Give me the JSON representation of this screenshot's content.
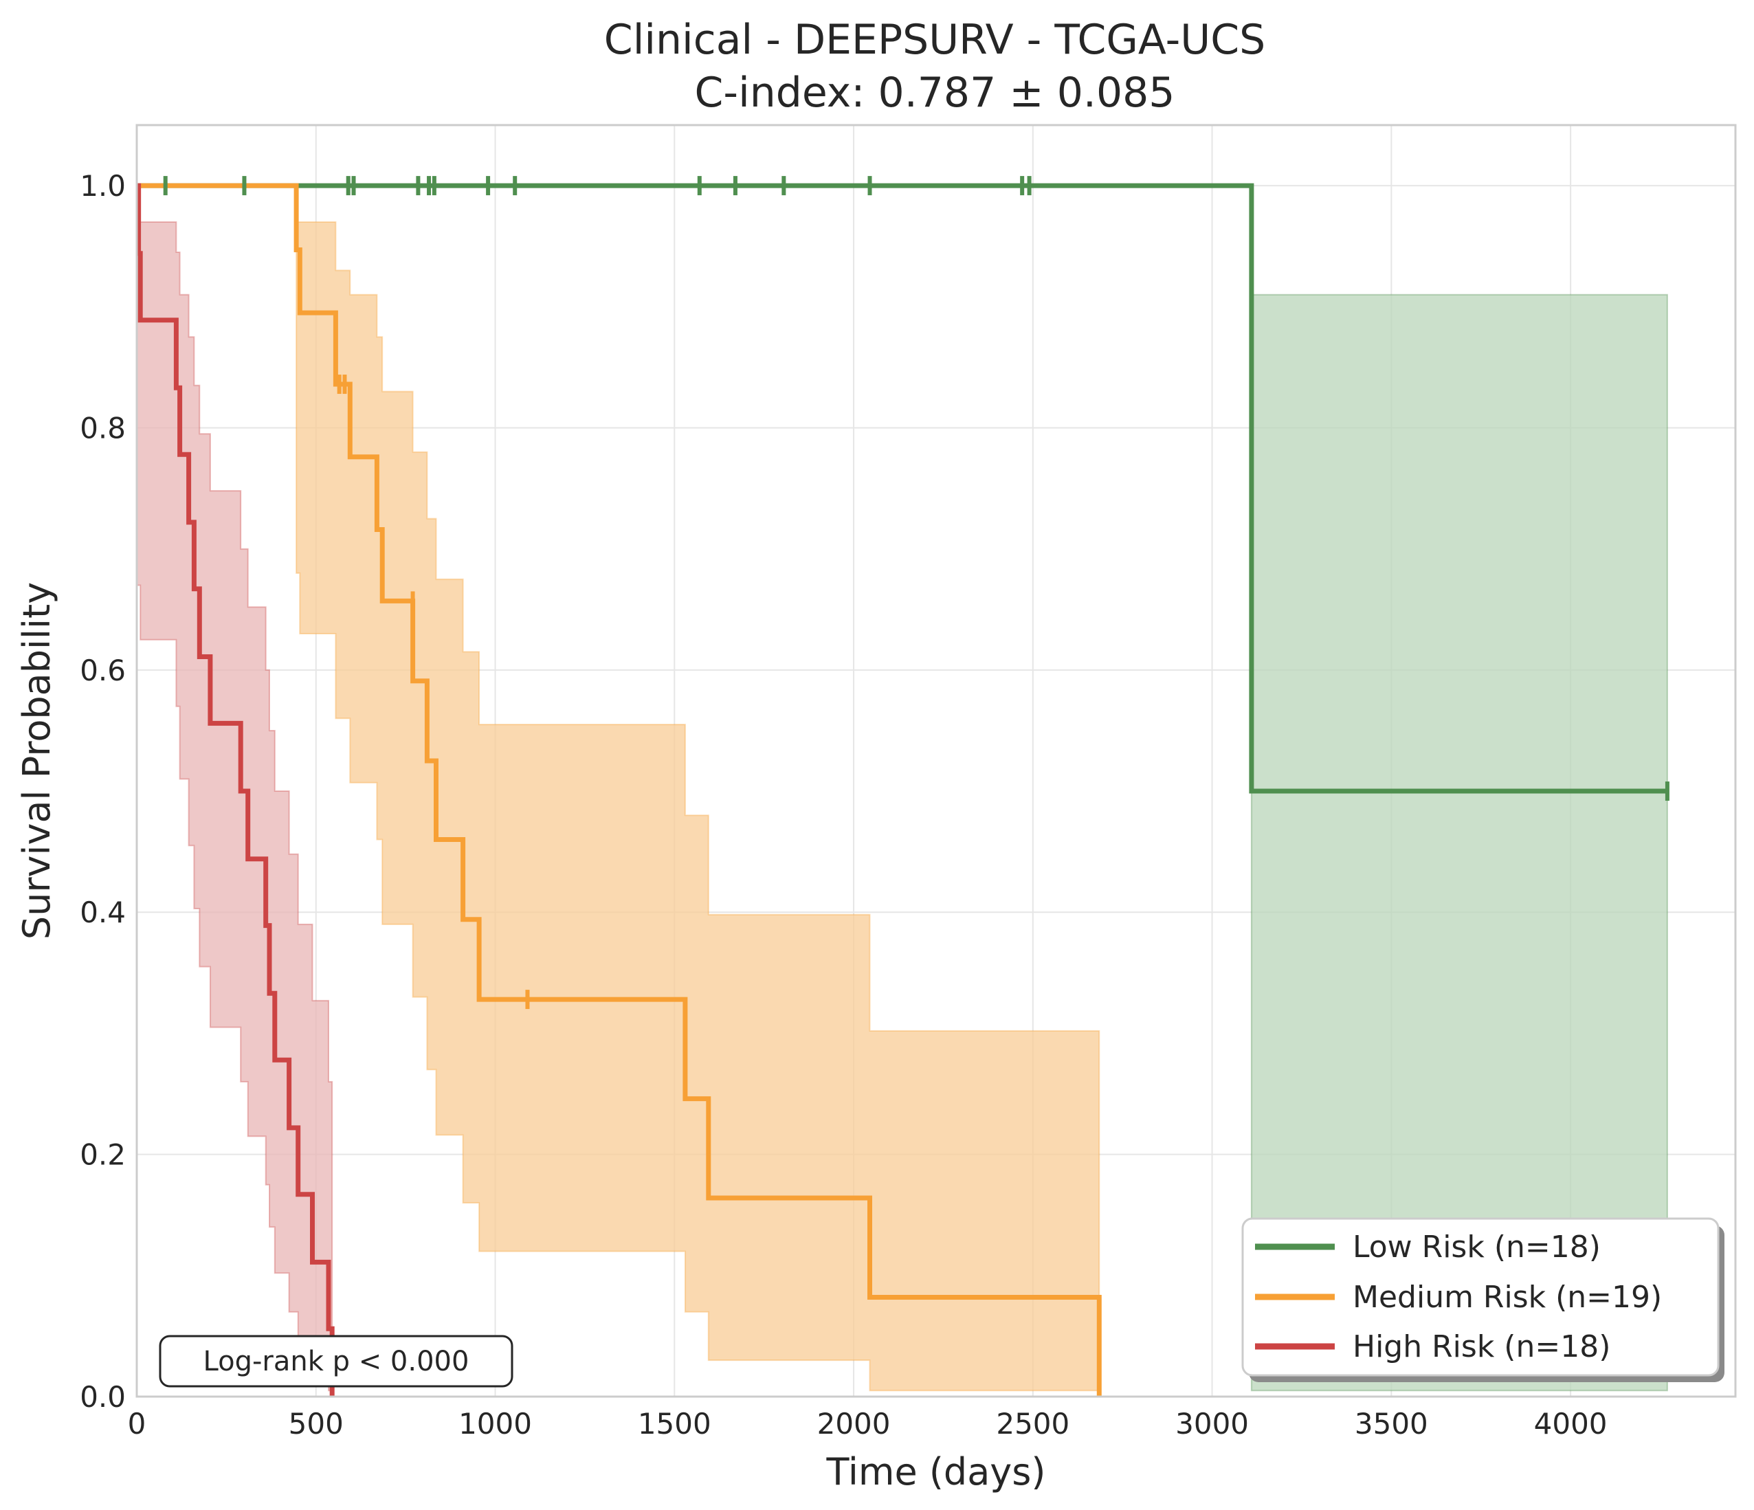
{
  "chart_data": {
    "type": "line",
    "title": "Clinical - DEEPSURV - TCGA-UCS",
    "subtitle": "C-index: 0.787 ± 0.085",
    "xlabel": "Time (days)",
    "ylabel": "Survival Probability",
    "xlim": [
      0,
      4460
    ],
    "ylim": [
      0,
      1.05
    ],
    "x_ticks": [
      0,
      500,
      1000,
      1500,
      2000,
      2500,
      3000,
      3500,
      4000
    ],
    "x_tick_labels": [
      "0",
      "500",
      "1000",
      "1500",
      "2000",
      "2500",
      "3000",
      "3500",
      "4000"
    ],
    "y_ticks": [
      0,
      0.2,
      0.4,
      0.6,
      0.8,
      1.0
    ],
    "y_tick_labels": [
      "0.0",
      "0.2",
      "0.4",
      "0.6",
      "0.8",
      "1.0"
    ],
    "grid": true,
    "legend_position": "bottom-right",
    "annotation": "Log-rank p < 0.000",
    "series": [
      {
        "name": "Low Risk (n=18)",
        "color": "#4f8f4f",
        "band_color": "#b9d6b9",
        "steps": [
          [
            0,
            1.0
          ],
          [
            3110,
            1.0
          ],
          [
            3110,
            0.5
          ],
          [
            4270,
            0.5
          ]
        ],
        "ci": [
          [
            3110,
            0.005,
            0.91
          ],
          [
            4270,
            0.005,
            0.91
          ]
        ],
        "censors": [
          [
            80,
            1.0
          ],
          [
            300,
            1.0
          ],
          [
            590,
            1.0
          ],
          [
            605,
            1.0
          ],
          [
            785,
            1.0
          ],
          [
            815,
            1.0
          ],
          [
            830,
            1.0
          ],
          [
            980,
            1.0
          ],
          [
            1055,
            1.0
          ],
          [
            1570,
            1.0
          ],
          [
            1670,
            1.0
          ],
          [
            1805,
            1.0
          ],
          [
            2045,
            1.0
          ],
          [
            2470,
            1.0
          ],
          [
            2490,
            1.0
          ],
          [
            4270,
            0.5
          ]
        ]
      },
      {
        "name": "Medium Risk (n=19)",
        "color": "#f7a035",
        "band_color": "#f8cc95",
        "steps": [
          [
            0,
            1.0
          ],
          [
            445,
            1.0
          ],
          [
            445,
            0.947
          ],
          [
            455,
            0.947
          ],
          [
            455,
            0.895
          ],
          [
            555,
            0.895
          ],
          [
            555,
            0.836
          ],
          [
            595,
            0.836
          ],
          [
            595,
            0.776
          ],
          [
            670,
            0.776
          ],
          [
            670,
            0.716
          ],
          [
            685,
            0.716
          ],
          [
            685,
            0.657
          ],
          [
            770,
            0.657
          ],
          [
            770,
            0.591
          ],
          [
            810,
            0.591
          ],
          [
            810,
            0.525
          ],
          [
            835,
            0.525
          ],
          [
            835,
            0.46
          ],
          [
            910,
            0.46
          ],
          [
            910,
            0.394
          ],
          [
            955,
            0.394
          ],
          [
            955,
            0.328
          ],
          [
            1530,
            0.328
          ],
          [
            1530,
            0.246
          ],
          [
            1595,
            0.246
          ],
          [
            1595,
            0.164
          ],
          [
            2045,
            0.164
          ],
          [
            2045,
            0.082
          ],
          [
            2685,
            0.082
          ],
          [
            2685,
            0.0
          ]
        ],
        "ci": [
          [
            0,
            1.0,
            1.0
          ],
          [
            445,
            0.68,
            0.97
          ],
          [
            455,
            0.63,
            0.97
          ],
          [
            555,
            0.56,
            0.93
          ],
          [
            595,
            0.507,
            0.91
          ],
          [
            670,
            0.46,
            0.875
          ],
          [
            685,
            0.39,
            0.83
          ],
          [
            770,
            0.33,
            0.78
          ],
          [
            810,
            0.27,
            0.725
          ],
          [
            835,
            0.216,
            0.675
          ],
          [
            910,
            0.16,
            0.615
          ],
          [
            955,
            0.12,
            0.555
          ],
          [
            1530,
            0.07,
            0.48
          ],
          [
            1595,
            0.03,
            0.398
          ],
          [
            2045,
            0.005,
            0.302
          ],
          [
            2685,
            0.005,
            0.302
          ]
        ],
        "censors": [
          [
            565,
            0.836
          ],
          [
            580,
            0.836
          ],
          [
            770,
            0.657
          ],
          [
            1090,
            0.328
          ]
        ]
      },
      {
        "name": "High Risk (n=18)",
        "color": "#cc4444",
        "band_color": "#e8b6b6",
        "steps": [
          [
            0,
            1.0
          ],
          [
            5,
            1.0
          ],
          [
            5,
            0.944
          ],
          [
            10,
            0.944
          ],
          [
            10,
            0.889
          ],
          [
            110,
            0.889
          ],
          [
            110,
            0.833
          ],
          [
            120,
            0.833
          ],
          [
            120,
            0.778
          ],
          [
            145,
            0.778
          ],
          [
            145,
            0.722
          ],
          [
            160,
            0.722
          ],
          [
            160,
            0.667
          ],
          [
            175,
            0.667
          ],
          [
            175,
            0.611
          ],
          [
            205,
            0.611
          ],
          [
            205,
            0.556
          ],
          [
            290,
            0.556
          ],
          [
            290,
            0.5
          ],
          [
            310,
            0.5
          ],
          [
            310,
            0.444
          ],
          [
            360,
            0.444
          ],
          [
            360,
            0.389
          ],
          [
            370,
            0.389
          ],
          [
            370,
            0.333
          ],
          [
            385,
            0.333
          ],
          [
            385,
            0.278
          ],
          [
            425,
            0.278
          ],
          [
            425,
            0.222
          ],
          [
            450,
            0.222
          ],
          [
            450,
            0.167
          ],
          [
            490,
            0.167
          ],
          [
            490,
            0.111
          ],
          [
            535,
            0.111
          ],
          [
            535,
            0.056
          ],
          [
            545,
            0.056
          ],
          [
            545,
            0.0
          ]
        ],
        "ci": [
          [
            0,
            0.67,
            1.0
          ],
          [
            10,
            0.625,
            0.97
          ],
          [
            110,
            0.57,
            0.945
          ],
          [
            120,
            0.51,
            0.91
          ],
          [
            145,
            0.455,
            0.875
          ],
          [
            160,
            0.403,
            0.835
          ],
          [
            175,
            0.355,
            0.795
          ],
          [
            205,
            0.305,
            0.748
          ],
          [
            290,
            0.26,
            0.7
          ],
          [
            310,
            0.215,
            0.652
          ],
          [
            360,
            0.175,
            0.6
          ],
          [
            370,
            0.14,
            0.55
          ],
          [
            385,
            0.102,
            0.5
          ],
          [
            425,
            0.07,
            0.448
          ],
          [
            450,
            0.04,
            0.39
          ],
          [
            490,
            0.012,
            0.327
          ],
          [
            535,
            0.005,
            0.26
          ],
          [
            545,
            0.005,
            0.26
          ]
        ],
        "censors": []
      }
    ]
  }
}
